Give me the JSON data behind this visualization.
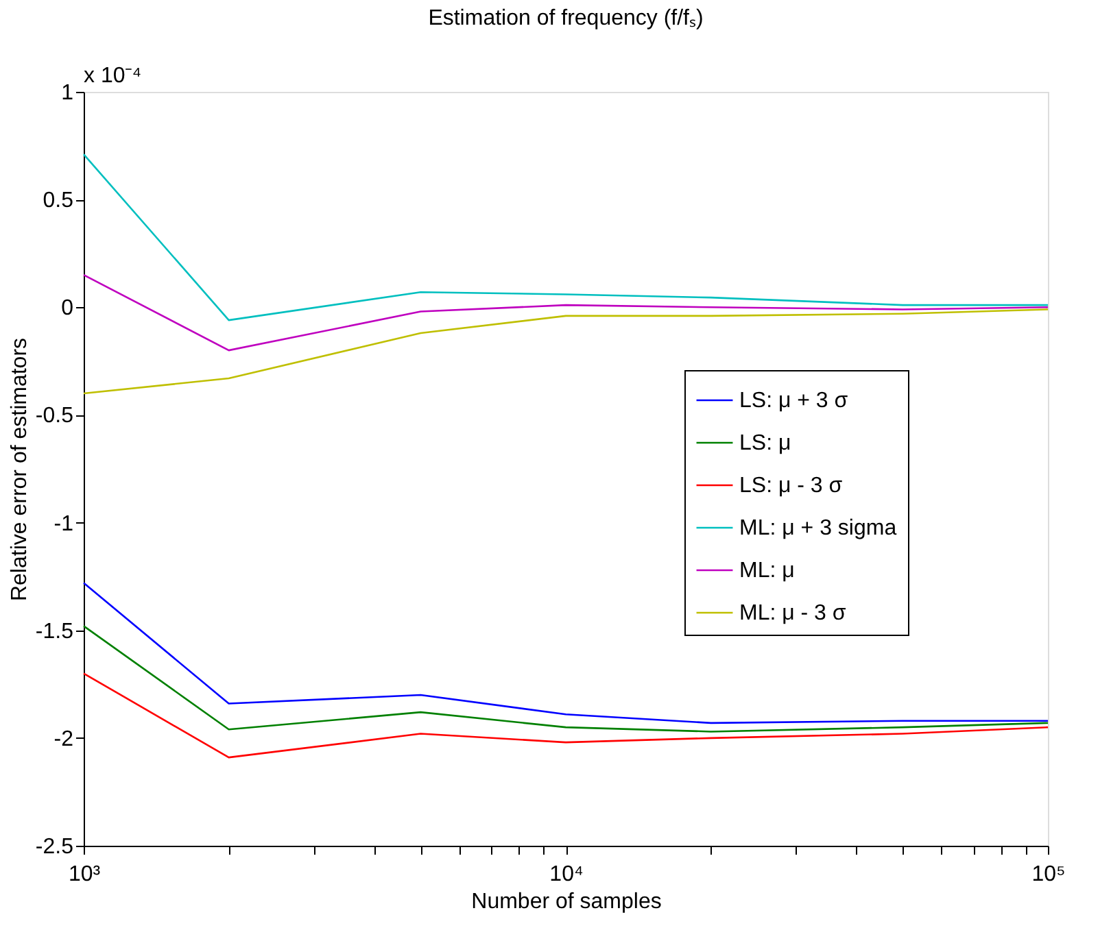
{
  "chart_data": {
    "type": "line",
    "title": "Estimation of frequency (f/fₛ)",
    "xlabel": "Number of samples",
    "ylabel": "Relative error of estimators",
    "annotations": [
      "x 10⁻⁴"
    ],
    "x": [
      1000,
      2000,
      5000,
      10000,
      20000,
      50000,
      100000
    ],
    "series": [
      {
        "name": "LS: μ + 3 σ",
        "color": "#0000ff",
        "values": [
          -1.28,
          -1.84,
          -1.8,
          -1.89,
          -1.93,
          -1.92,
          -1.92
        ]
      },
      {
        "name": "LS: μ",
        "color": "#008000",
        "values": [
          -1.48,
          -1.96,
          -1.88,
          -1.95,
          -1.97,
          -1.95,
          -1.93
        ]
      },
      {
        "name": "LS: μ  - 3 σ",
        "color": "#ff0000",
        "values": [
          -1.7,
          -2.09,
          -1.98,
          -2.02,
          -2.0,
          -1.98,
          -1.95
        ]
      },
      {
        "name": "ML: μ + 3 sigma",
        "color": "#00bfbf",
        "values": [
          0.71,
          -0.06,
          0.07,
          0.06,
          0.045,
          0.01,
          0.01
        ]
      },
      {
        "name": "ML: μ",
        "color": "#bf00bf",
        "values": [
          0.15,
          -0.2,
          -0.02,
          0.01,
          0.0,
          -0.01,
          0.0
        ]
      },
      {
        "name": "ML: μ - 3 σ",
        "color": "#bfbf00",
        "values": [
          -0.4,
          -0.33,
          -0.12,
          -0.04,
          -0.04,
          -0.03,
          -0.01
        ]
      }
    ],
    "log": "x",
    "xlim": [
      1000,
      100000
    ],
    "xticks": [
      {
        "value": 1000,
        "label": "10³"
      },
      {
        "value": 2000,
        "label": null
      },
      {
        "value": 3000,
        "label": null
      },
      {
        "value": 4000,
        "label": null
      },
      {
        "value": 5000,
        "label": null
      },
      {
        "value": 6000,
        "label": null
      },
      {
        "value": 7000,
        "label": null
      },
      {
        "value": 8000,
        "label": null
      },
      {
        "value": 9000,
        "label": null
      },
      {
        "value": 10000,
        "label": "10⁴"
      },
      {
        "value": 20000,
        "label": null
      },
      {
        "value": 30000,
        "label": null
      },
      {
        "value": 40000,
        "label": null
      },
      {
        "value": 50000,
        "label": null
      },
      {
        "value": 60000,
        "label": null
      },
      {
        "value": 70000,
        "label": null
      },
      {
        "value": 80000,
        "label": null
      },
      {
        "value": 90000,
        "label": null
      },
      {
        "value": 100000,
        "label": "10⁵"
      }
    ],
    "ylim": [
      -2.5,
      1
    ],
    "yticks": [
      -2.5,
      -2,
      -1.5,
      -1,
      -0.5,
      0,
      0.5,
      1
    ],
    "grid": false,
    "legend": "right",
    "marker": "none",
    "line_style": "solid"
  }
}
